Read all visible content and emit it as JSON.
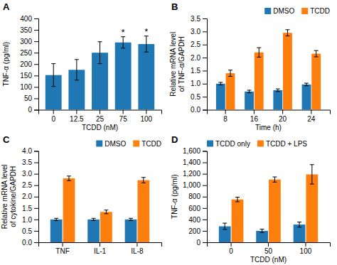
{
  "chart_data": [
    {
      "type": "bar",
      "title": "A",
      "categories": [
        "0",
        "12.5",
        "25",
        "75",
        "100"
      ],
      "values": [
        152,
        175,
        250,
        295,
        288
      ],
      "errors": [
        50,
        45,
        48,
        25,
        35
      ],
      "xlabel": "TCDD (nM)",
      "ylabel": "TNF-α (pg/ml)",
      "ylim": [
        0,
        400
      ],
      "yticks": [
        0,
        50,
        100,
        150,
        200,
        250,
        300,
        350,
        400
      ],
      "annotations": [
        {
          "text": "*",
          "x": "75"
        },
        {
          "text": "*",
          "x": "100"
        }
      ]
    },
    {
      "type": "bar",
      "title": "B",
      "categories": [
        "8",
        "16",
        "20",
        "24"
      ],
      "series": [
        {
          "name": "DMSO",
          "values": [
            1.0,
            0.7,
            0.75,
            0.97
          ],
          "errors": [
            0.05,
            0.05,
            0.05,
            0.05
          ]
        },
        {
          "name": "TCDD",
          "values": [
            1.4,
            2.2,
            2.95,
            2.15
          ],
          "errors": [
            0.12,
            0.18,
            0.12,
            0.12
          ]
        }
      ],
      "xlabel": "Time (h)",
      "ylabel": "Relative mRNA level\nof TNF-α/GAPDH",
      "ylim": [
        0,
        3.5
      ],
      "yticks": [
        {
          "value": 0,
          "label": "0.0"
        },
        0.5,
        {
          "value": 1,
          "label": "1.0"
        },
        1.5,
        {
          "value": 2,
          "label": "2.0"
        },
        2.5,
        {
          "value": 3,
          "label": "3.0"
        },
        3.5
      ],
      "legend": "upper right"
    },
    {
      "type": "bar",
      "title": "C",
      "categories": [
        "TNF",
        "IL-1",
        "IL-8"
      ],
      "series": [
        {
          "name": "DMSO",
          "values": [
            1.0,
            1.0,
            1.0
          ],
          "errors": [
            0.05,
            0.05,
            0.05
          ]
        },
        {
          "name": "TCDD",
          "values": [
            2.8,
            1.33,
            2.72
          ],
          "errors": [
            0.1,
            0.08,
            0.12
          ]
        }
      ],
      "ylabel": "Relative mRNA level\nof cytokine/GAPDH",
      "ylim": [
        0,
        4.0
      ],
      "yticks": [
        {
          "value": 0,
          "label": "0.0"
        },
        0.5,
        {
          "value": 1,
          "label": "1.0"
        },
        1.5,
        {
          "value": 2,
          "label": "2.0"
        },
        2.5,
        {
          "value": 3,
          "label": "3.0"
        },
        3.5,
        {
          "value": 4,
          "label": "4.0"
        }
      ],
      "legend": "upper right"
    },
    {
      "type": "bar",
      "title": "D",
      "categories": [
        "0",
        "50",
        "100"
      ],
      "series": [
        {
          "name": "TCDD only",
          "values": [
            280,
            200,
            310
          ],
          "errors": [
            55,
            30,
            45
          ]
        },
        {
          "name": "TCDD + LPS",
          "values": [
            750,
            1100,
            1190
          ],
          "errors": [
            40,
            45,
            170
          ]
        }
      ],
      "xlabel": "TCDD (nM)",
      "ylabel": "TNF-α (pg/ml)",
      "ylim": [
        0,
        1600
      ],
      "yticks": [
        0,
        200,
        400,
        600,
        800,
        {
          "value": 1000,
          "label": "1,000"
        },
        {
          "value": 1200,
          "label": "1,200"
        },
        {
          "value": 1400,
          "label": "1,400"
        },
        {
          "value": 1600,
          "label": "1,600"
        }
      ],
      "legend": "upper left"
    }
  ]
}
